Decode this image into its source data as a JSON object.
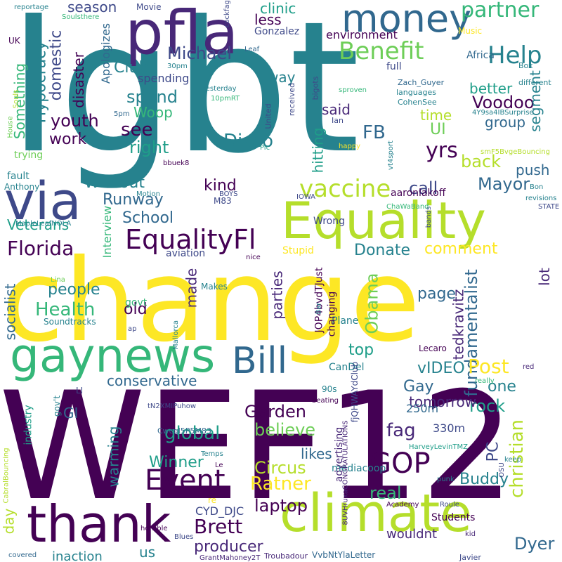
{
  "colors": {
    "background": "#ffffff",
    "palette": [
      "#440154",
      "#482878",
      "#3e4989",
      "#31688e",
      "#26828e",
      "#1f9e89",
      "#35b779",
      "#6ece58",
      "#b5de2b",
      "#fde725"
    ]
  },
  "words": [
    {
      "text": "lgbt",
      "color": "#26828e"
    },
    {
      "text": "change",
      "color": "#fde725"
    },
    {
      "text": "WEF12",
      "color": "#440154"
    },
    {
      "text": "Equality",
      "color": "#b5de2b"
    },
    {
      "text": "pfla",
      "color": "#482878"
    },
    {
      "text": "money",
      "color": "#31688e"
    },
    {
      "text": "via",
      "color": "#3e4989"
    },
    {
      "text": "gaynews",
      "color": "#35b779"
    },
    {
      "text": "climate",
      "color": "#b5de2b"
    },
    {
      "text": "thank",
      "color": "#440154"
    },
    {
      "text": "Bill",
      "color": "#31688e"
    },
    {
      "text": "EqualityFl",
      "color": "#440154"
    },
    {
      "text": "vaccine",
      "color": "#b5de2b"
    },
    {
      "text": "Benefit",
      "color": "#6ece58"
    },
    {
      "text": "GOP",
      "color": "#440154"
    },
    {
      "text": "Event",
      "color": "#440154"
    },
    {
      "text": "Help",
      "color": "#26828e"
    },
    {
      "text": "partner",
      "color": "#35b779"
    },
    {
      "text": "fundamentalist",
      "color": "#31688e"
    },
    {
      "text": "christian",
      "color": "#b5de2b"
    },
    {
      "text": "Florida",
      "color": "#440154"
    },
    {
      "text": "Michael",
      "color": "#3e4989"
    },
    {
      "text": "Ratner",
      "color": "#fde725"
    },
    {
      "text": "Brett",
      "color": "#440154"
    },
    {
      "text": "Health",
      "color": "#35b779"
    },
    {
      "text": "Obama",
      "color": "#6ece58"
    },
    {
      "text": "Disco",
      "color": "#26828e"
    },
    {
      "text": "yrs",
      "color": "#440154"
    },
    {
      "text": "FB",
      "color": "#31688e"
    },
    {
      "text": "Voodoo",
      "color": "#440154"
    },
    {
      "text": "Post",
      "color": "#fde725"
    },
    {
      "text": "Mayor",
      "color": "#31688e"
    },
    {
      "text": "fag",
      "color": "#482878"
    },
    {
      "text": "global",
      "color": "#1f9e89"
    },
    {
      "text": "Garden",
      "color": "#440154"
    },
    {
      "text": "Circus",
      "color": "#b5de2b"
    },
    {
      "text": "laptop",
      "color": "#440154"
    },
    {
      "text": "producer",
      "color": "#482878"
    },
    {
      "text": "Dyer",
      "color": "#31688e"
    },
    {
      "text": "rock",
      "color": "#1f9e89"
    },
    {
      "text": "Buddy",
      "color": "#26828e"
    },
    {
      "text": "Winner",
      "color": "#1f9e89"
    },
    {
      "text": "believe",
      "color": "#6ece58"
    },
    {
      "text": "real",
      "color": "#35b779"
    },
    {
      "text": "see",
      "color": "#440154"
    },
    {
      "text": "right",
      "color": "#1f9e89"
    },
    {
      "text": "work",
      "color": "#440154"
    },
    {
      "text": "youth",
      "color": "#440154"
    },
    {
      "text": "spend",
      "color": "#26828e"
    },
    {
      "text": "Woop",
      "color": "#35b779"
    },
    {
      "text": "Club",
      "color": "#26828e"
    },
    {
      "text": "call",
      "color": "#3e4989"
    },
    {
      "text": "back",
      "color": "#b5de2b"
    },
    {
      "text": "comment",
      "color": "#fde725"
    },
    {
      "text": "Donate",
      "color": "#26828e"
    },
    {
      "text": "School",
      "color": "#31688e"
    },
    {
      "text": "Runway",
      "color": "#31688e"
    },
    {
      "text": "Without",
      "color": "#26828e"
    },
    {
      "text": "kind",
      "color": "#440154"
    },
    {
      "text": "people",
      "color": "#26828e"
    },
    {
      "text": "old",
      "color": "#440154"
    },
    {
      "text": "page",
      "color": "#31688e"
    },
    {
      "text": "one",
      "color": "#26828e"
    },
    {
      "text": "Gay",
      "color": "#31688e"
    },
    {
      "text": "top",
      "color": "#1f9e89"
    },
    {
      "text": "vIDEO",
      "color": "#26828e"
    },
    {
      "text": "PC",
      "color": "#3e4989"
    },
    {
      "text": "UI",
      "color": "#6ece58"
    },
    {
      "text": "time",
      "color": "#b5de2b"
    },
    {
      "text": "group",
      "color": "#31688e"
    },
    {
      "text": "better",
      "color": "#1f9e89"
    },
    {
      "text": "segment",
      "color": "#26828e"
    },
    {
      "text": "push",
      "color": "#31688e"
    },
    {
      "text": "said",
      "color": "#482878"
    },
    {
      "text": "hitting",
      "color": "#1f9e89"
    },
    {
      "text": "domestic",
      "color": "#3e4989"
    },
    {
      "text": "Hypocracy",
      "color": "#26828e"
    },
    {
      "text": "disaster",
      "color": "#440154"
    },
    {
      "text": "Something",
      "color": "#35b779"
    },
    {
      "text": "season",
      "color": "#3e4989"
    },
    {
      "text": "clinic",
      "color": "#1f9e89"
    },
    {
      "text": "less",
      "color": "#440154"
    },
    {
      "text": "way",
      "color": "#26828e"
    },
    {
      "text": "socialist",
      "color": "#31688e"
    },
    {
      "text": "warming",
      "color": "#26828e"
    },
    {
      "text": "conservative",
      "color": "#31688e"
    },
    {
      "text": "GI",
      "color": "#31688e"
    },
    {
      "text": "tomorrow",
      "color": "#482878"
    },
    {
      "text": "likes",
      "color": "#31688e"
    },
    {
      "text": "Veterans",
      "color": "#1f9e89"
    },
    {
      "text": "parties",
      "color": "#482878"
    },
    {
      "text": "made",
      "color": "#482878"
    },
    {
      "text": "lot",
      "color": "#482878"
    },
    {
      "text": "tedkravitz",
      "color": "#482878"
    },
    {
      "text": "us",
      "color": "#26828e"
    },
    {
      "text": "day",
      "color": "#b5de2b"
    },
    {
      "text": "wouldnt",
      "color": "#482878"
    },
    {
      "text": "inaction",
      "color": "#26828e"
    },
    {
      "text": "Students",
      "color": "#440154"
    },
    {
      "text": "CYD_DJC",
      "color": "#3e4989"
    },
    {
      "text": "250m",
      "color": "#31688e"
    },
    {
      "text": "330m",
      "color": "#3e4989"
    },
    {
      "text": "aaronlakoff",
      "color": "#440154"
    },
    {
      "text": "JOP4bvdTJust",
      "color": "#440154"
    },
    {
      "text": "Interview",
      "color": "#35b779"
    },
    {
      "text": "environment",
      "color": "#440154"
    },
    {
      "text": "Gonzalez",
      "color": "#3e4989"
    },
    {
      "text": "Apologizes",
      "color": "#31688e"
    },
    {
      "text": "Africa",
      "color": "#31688e"
    },
    {
      "text": "full",
      "color": "#3e4989"
    },
    {
      "text": "spending",
      "color": "#3e4989"
    },
    {
      "text": "Stupid",
      "color": "#fde725"
    },
    {
      "text": "Wrong",
      "color": "#3e4989"
    },
    {
      "text": "aviation",
      "color": "#3e4989"
    },
    {
      "text": "govt",
      "color": "#35b779"
    },
    {
      "text": "Makes",
      "color": "#26828e"
    },
    {
      "text": "Plane",
      "color": "#26828e"
    },
    {
      "text": "CanDel",
      "color": "#26828e"
    },
    {
      "text": "changing",
      "color": "#440154"
    },
    {
      "text": "advertising",
      "color": "#482878"
    },
    {
      "text": "mediacoop",
      "color": "#26828e"
    },
    {
      "text": "industry",
      "color": "#1f9e89"
    },
    {
      "text": "trying",
      "color": "#6ece58"
    },
    {
      "text": "fault",
      "color": "#26828e"
    },
    {
      "text": "Anthony",
      "color": "#26828e"
    },
    {
      "text": "Soundtracks",
      "color": "#26828e"
    },
    {
      "text": "Movie",
      "color": "#3e4989"
    },
    {
      "text": "Music",
      "color": "#fde725"
    },
    {
      "text": "languages",
      "color": "#26828e"
    },
    {
      "text": "Zach_Guyer",
      "color": "#31688e"
    },
    {
      "text": "CohenSee",
      "color": "#26828e"
    },
    {
      "text": "Ian",
      "color": "#3e4989"
    },
    {
      "text": "received",
      "color": "#3e4989"
    },
    {
      "text": "bigots",
      "color": "#3e4989"
    },
    {
      "text": "United",
      "color": "#3e4989"
    },
    {
      "text": "Box",
      "color": "#26828e"
    },
    {
      "text": "different",
      "color": "#26828e"
    },
    {
      "text": "cockfags",
      "color": "#3e4989"
    },
    {
      "text": "Leaf",
      "color": "#31688e"
    },
    {
      "text": "UK",
      "color": "#440154"
    },
    {
      "text": "reportage",
      "color": "#26828e"
    },
    {
      "text": "Soulsthere",
      "color": "#35b779"
    },
    {
      "text": "Yesterday",
      "color": "#26828e"
    },
    {
      "text": "30pm",
      "color": "#26828e"
    },
    {
      "text": "10pmRT",
      "color": "#35b779"
    },
    {
      "text": "5pm",
      "color": "#31688e"
    },
    {
      "text": "Souls",
      "color": "#b5de2b"
    },
    {
      "text": "House",
      "color": "#6ece58"
    },
    {
      "text": "sproven",
      "color": "#35b779"
    },
    {
      "text": "4Y9sa4IBSurprise",
      "color": "#26828e"
    },
    {
      "text": "smF5BvgeBouncing",
      "color": "#b5de2b"
    },
    {
      "text": "happy",
      "color": "#fde725"
    },
    {
      "text": "vt4sport",
      "color": "#26828e"
    },
    {
      "text": "Pic",
      "color": "#1f9e89"
    },
    {
      "text": "bbuek8",
      "color": "#440154"
    },
    {
      "text": "Motion",
      "color": "#26828e"
    },
    {
      "text": "BOYS",
      "color": "#3e4989"
    },
    {
      "text": "M83",
      "color": "#3e4989"
    },
    {
      "text": "Bon",
      "color": "#26828e"
    },
    {
      "text": "revisions",
      "color": "#26828e"
    },
    {
      "text": "STATE",
      "color": "#3e4989"
    },
    {
      "text": "IOWA",
      "color": "#3e4989"
    },
    {
      "text": "ChaWaBand",
      "color": "#35b779"
    },
    {
      "text": "bands",
      "color": "#3e4989"
    },
    {
      "text": "MapleLeafNOLA",
      "color": "#26828e"
    },
    {
      "text": "nice",
      "color": "#440154"
    },
    {
      "text": "Lina",
      "color": "#6ece58"
    },
    {
      "text": "Bar",
      "color": "#26828e"
    },
    {
      "text": "Mallorca",
      "color": "#26828e"
    },
    {
      "text": "ap",
      "color": "#3e4989"
    },
    {
      "text": "Lecaro",
      "color": "#440154"
    },
    {
      "text": "red",
      "color": "#482878"
    },
    {
      "text": "really",
      "color": "#35b779"
    },
    {
      "text": "beating",
      "color": "#440154"
    },
    {
      "text": "90s",
      "color": "#26828e"
    },
    {
      "text": "fjQHWAYdClub",
      "color": "#3e4989"
    },
    {
      "text": "gov't",
      "color": "#26828e"
    },
    {
      "text": "LI",
      "color": "#3e4989"
    },
    {
      "text": "tN2XMIPuhow",
      "color": "#3e4989"
    },
    {
      "text": "Cwcql5P5M83",
      "color": "#31688e"
    },
    {
      "text": "Temps",
      "color": "#26828e"
    },
    {
      "text": "Le",
      "color": "#440154"
    },
    {
      "text": "re",
      "color": "#fde725"
    },
    {
      "text": "Blues",
      "color": "#3e4989"
    },
    {
      "text": "8UVHruxaCONGRATULATIONS",
      "color": "#482878"
    },
    {
      "text": "HarveyLevinTMZ",
      "color": "#1f9e89"
    },
    {
      "text": "punk",
      "color": "#26828e"
    },
    {
      "text": "keep",
      "color": "#26828e"
    },
    {
      "text": "OSU",
      "color": "#3e4989"
    },
    {
      "text": "Academy",
      "color": "#440154"
    },
    {
      "text": "Roule",
      "color": "#3e4989"
    },
    {
      "text": "kid",
      "color": "#482878"
    },
    {
      "text": "Javier",
      "color": "#3e4989"
    },
    {
      "text": "VvbNtYlaLetter",
      "color": "#31688e"
    },
    {
      "text": "Troubadour",
      "color": "#482878"
    },
    {
      "text": "GrantMahoney2T",
      "color": "#482878"
    },
    {
      "text": "covered",
      "color": "#31688e"
    },
    {
      "text": "horrible",
      "color": "#440154"
    },
    {
      "text": "CabralBouncing",
      "color": "#b5de2b"
    }
  ]
}
